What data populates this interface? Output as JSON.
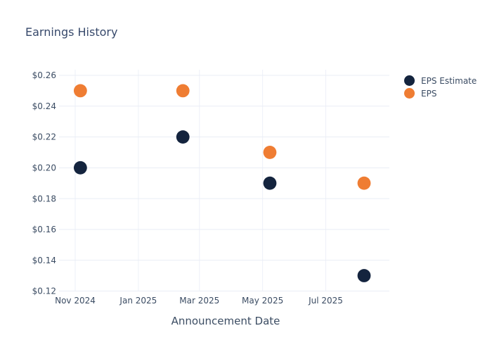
{
  "title": "Earnings History",
  "colors": {
    "background": "#ffffff",
    "title_text": "#37496b",
    "axis_text": "#3b4c63",
    "h_gridline": "#e9edf5",
    "v_gridline": "#eef0f8",
    "estimate_dot": "#14243e",
    "actual_dot": "#ef7d33"
  },
  "legend": {
    "position": "right"
  },
  "chart_data": {
    "type": "scatter",
    "title": "Earnings History",
    "xlabel": "Announcement Date",
    "ylabel": "",
    "grid": true,
    "ylim": [
      0.115,
      0.265
    ],
    "y_ticks": [
      0.26,
      0.24,
      0.22,
      0.2,
      0.18,
      0.16,
      0.14,
      0.12
    ],
    "y_tick_labels": [
      "$0.26",
      "$0.24",
      "$0.22",
      "$0.20",
      "$0.18",
      "$0.16",
      "$0.14",
      "$0.12"
    ],
    "x_ticks": [
      {
        "label": "Nov 2024",
        "date": "2024-11-01"
      },
      {
        "label": "Jan 2025",
        "date": "2025-01-01"
      },
      {
        "label": "Mar 2025",
        "date": "2025-03-01"
      },
      {
        "label": "May 2025",
        "date": "2025-05-01"
      },
      {
        "label": "Jul 2025",
        "date": "2025-07-01"
      }
    ],
    "series": [
      {
        "name": "EPS Estimate",
        "color": "#14243e",
        "x": [
          "2024-11-06",
          "2025-02-13",
          "2025-05-08",
          "2025-08-07"
        ],
        "y": [
          0.2,
          0.22,
          0.19,
          0.13
        ]
      },
      {
        "name": "EPS",
        "color": "#ef7d33",
        "x": [
          "2024-11-06",
          "2025-02-13",
          "2025-05-08",
          "2025-08-07"
        ],
        "y": [
          0.25,
          0.25,
          0.21,
          0.19
        ]
      }
    ]
  }
}
